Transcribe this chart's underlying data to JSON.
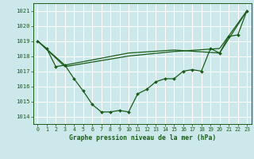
{
  "bg_color": "#cce8ea",
  "grid_color": "#b8dfe0",
  "line_color": "#1a5c1a",
  "xlabel": "Graphe pression niveau de la mer (hPa)",
  "ylim": [
    1013.5,
    1021.5
  ],
  "xlim": [
    -0.5,
    23.5
  ],
  "yticks": [
    1014,
    1015,
    1016,
    1017,
    1018,
    1019,
    1020,
    1021
  ],
  "xticks": [
    0,
    1,
    2,
    3,
    4,
    5,
    6,
    7,
    8,
    9,
    10,
    11,
    12,
    13,
    14,
    15,
    16,
    17,
    18,
    19,
    20,
    21,
    22,
    23
  ],
  "series1_x": [
    0,
    1,
    2,
    3,
    4,
    5,
    6,
    7,
    8,
    9,
    10,
    11,
    12,
    13,
    14,
    15,
    16,
    17,
    18,
    19,
    20,
    21,
    22,
    23
  ],
  "series1_y": [
    1019.0,
    1018.5,
    1017.3,
    1017.4,
    1016.5,
    1015.7,
    1014.8,
    1014.3,
    1014.3,
    1014.4,
    1014.3,
    1015.5,
    1015.8,
    1016.3,
    1016.5,
    1016.5,
    1017.0,
    1017.1,
    1017.0,
    1018.5,
    1018.2,
    1019.3,
    1019.4,
    1021.0
  ],
  "series2_x": [
    0,
    3,
    10,
    15,
    20,
    23
  ],
  "series2_y": [
    1019.0,
    1017.3,
    1018.0,
    1018.3,
    1018.5,
    1021.0
  ],
  "series3_x": [
    0,
    3,
    10,
    15,
    20,
    23
  ],
  "series3_y": [
    1019.0,
    1017.4,
    1018.2,
    1018.4,
    1018.2,
    1021.0
  ]
}
